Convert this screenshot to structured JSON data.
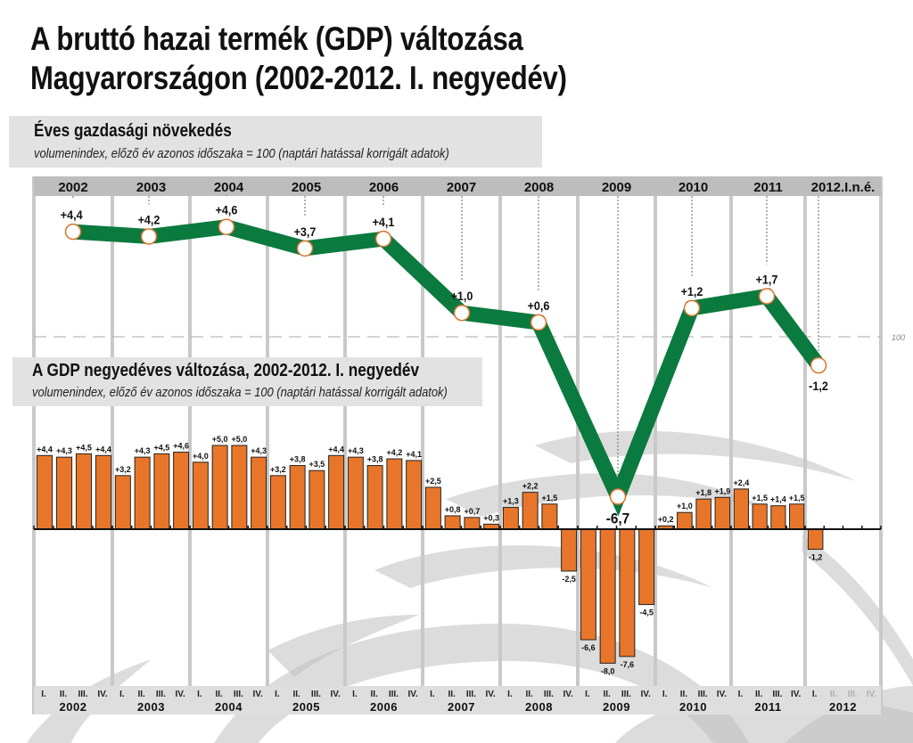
{
  "title_line1": "A bruttó hazai termék (GDP) változása",
  "title_line2": "Magyarországon (2002-2012. I. negyedév)",
  "colors": {
    "line": "#0b7a3f",
    "bar": "#e8762a",
    "band": "#bdbdbd",
    "panel": "#e2e2e2",
    "grid": "#c9c9c9",
    "marker_stroke": "#d9732e"
  },
  "annual_panel": {
    "heading": "Éves gazdasági növekedés",
    "subheading": "volumenindex, előző év azonos időszaka = 100 (naptári hatással korrigált adatok)"
  },
  "quarterly_panel": {
    "heading": "A GDP negyedéves változása, 2002-2012. I. negyedév",
    "subheading": "volumenindex, előző év azonos időszaka = 100 (naptári hatással korrigált adatok)"
  },
  "chart_data": [
    {
      "type": "line",
      "title": "Éves gazdasági növekedés",
      "categories": [
        "2002",
        "2003",
        "2004",
        "2005",
        "2006",
        "2007",
        "2008",
        "2009",
        "2010",
        "2011",
        "2012.I.n.é."
      ],
      "values": [
        4.4,
        4.2,
        4.6,
        3.7,
        4.1,
        1.0,
        0.6,
        -6.7,
        1.2,
        1.7,
        -1.2
      ],
      "labels": [
        "+4,4",
        "+4,2",
        "+4,6",
        "+3,7",
        "+4,1",
        "+1,0",
        "+0,6",
        "-6,7",
        "+1,2",
        "+1,7",
        "-1,2"
      ],
      "reference_line": {
        "value": 0,
        "label": "100"
      },
      "grid": true
    },
    {
      "type": "bar",
      "title": "A GDP negyedéves változása, 2002-2012. I. negyedév",
      "years": [
        "2002",
        "2003",
        "2004",
        "2005",
        "2006",
        "2007",
        "2008",
        "2009",
        "2010",
        "2011",
        "2012"
      ],
      "quarter_labels": [
        "I.",
        "II.",
        "III.",
        "IV."
      ],
      "values": [
        4.4,
        4.3,
        4.5,
        4.4,
        3.2,
        4.3,
        4.5,
        4.6,
        4.0,
        5.0,
        5.0,
        4.3,
        3.2,
        3.8,
        3.5,
        4.4,
        4.3,
        3.8,
        4.2,
        4.1,
        2.5,
        0.8,
        0.7,
        0.3,
        1.3,
        2.2,
        1.5,
        -2.5,
        -6.6,
        -8.0,
        -7.6,
        -4.5,
        0.2,
        1.0,
        1.8,
        1.9,
        2.4,
        1.5,
        1.4,
        1.5,
        -1.2
      ],
      "labels": [
        "+4,4",
        "+4,3",
        "+4,5",
        "+4,4",
        "+3,2",
        "+4,3",
        "+4,5",
        "+4,6",
        "+4,0",
        "+5,0",
        "+5,0",
        "+4,3",
        "+3,2",
        "+3,8",
        "+3,5",
        "+4,4",
        "+4,3",
        "+3,8",
        "+4,2",
        "+4,1",
        "+2,5",
        "+0,8",
        "+0,7",
        "+0,3",
        "+1,3",
        "+2,2",
        "+1,5",
        "-2,5",
        "-6,6",
        "-8,0",
        "-7,6",
        "-4,5",
        "+0,2",
        "+1,0",
        "+1,8",
        "+1,9",
        "+2,4",
        "+1,5",
        "+1,4",
        "+1,5",
        "-1,2"
      ],
      "ylim": [
        -8.5,
        5.5
      ],
      "grid": true
    }
  ]
}
